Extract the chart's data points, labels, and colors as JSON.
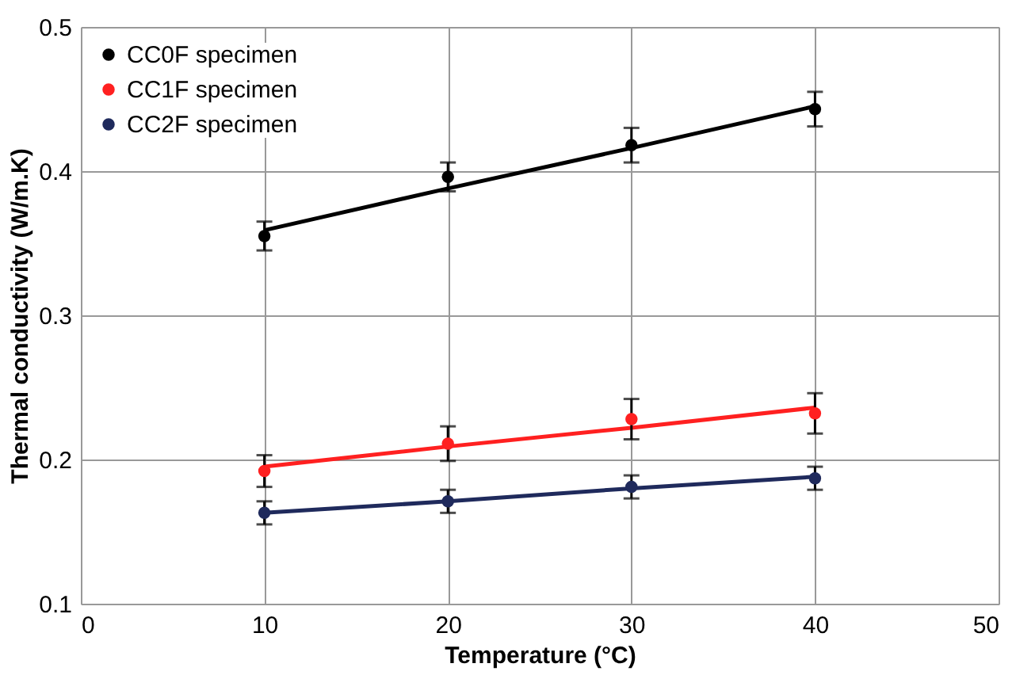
{
  "chart_data": {
    "type": "scatter",
    "xlabel": "Temperature (°C)",
    "ylabel": "Thermal conductivity (W/m.K)",
    "x": [
      10,
      20,
      30,
      40
    ],
    "series": [
      {
        "name": "CC0F specimen",
        "color": "#000000",
        "values": [
          0.355,
          0.396,
          0.418,
          0.443
        ],
        "errors": [
          0.01,
          0.01,
          0.012,
          0.012
        ]
      },
      {
        "name": "CC1F specimen",
        "color": "#ff2020",
        "values": [
          0.192,
          0.211,
          0.228,
          0.232
        ],
        "errors": [
          0.011,
          0.012,
          0.014,
          0.014
        ]
      },
      {
        "name": "CC2F specimen",
        "color": "#1f2a5c",
        "values": [
          0.163,
          0.171,
          0.181,
          0.187
        ],
        "errors": [
          0.008,
          0.008,
          0.008,
          0.008
        ]
      },
      {
        "type": "line",
        "color": "#000000",
        "values": [
          0.359,
          0.388,
          0.416,
          0.445
        ],
        "marker": "none"
      },
      {
        "type": "line",
        "color": "#ff2020",
        "values": [
          0.195,
          0.209,
          0.222,
          0.236
        ],
        "marker": "none"
      },
      {
        "type": "line",
        "color": "#1f2a5c",
        "values": [
          0.163,
          0.171,
          0.18,
          0.188
        ],
        "marker": "none"
      }
    ],
    "xlim": [
      0,
      50
    ],
    "xticks": [
      0,
      10,
      20,
      30,
      40,
      50
    ],
    "ylim": [
      0.1,
      0.5
    ],
    "yticks": [
      0.1,
      0.2,
      0.3,
      0.4,
      0.5
    ],
    "grid": true,
    "legend": "top left",
    "marker": "circle"
  }
}
